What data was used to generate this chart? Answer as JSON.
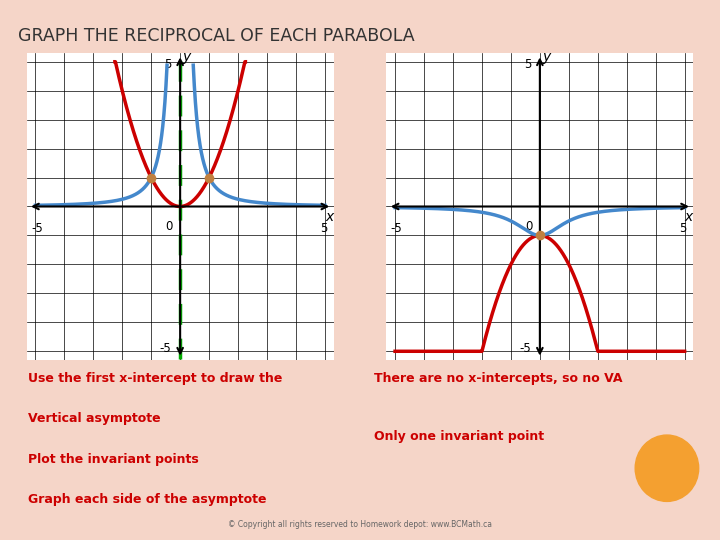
{
  "title": "Graph the Reciprocal of Each Parabola",
  "bg_color": "#f5d5c8",
  "graph_bg": "#ffffff",
  "grid_color": "#000000",
  "left_parabola_color": "#cc0000",
  "left_reciprocal_color": "#4488cc",
  "left_asymptote_color": "#00aa00",
  "right_parabola_color": "#cc0000",
  "right_reciprocal_color": "#4488cc",
  "text_color_red": "#cc0000",
  "left_text": [
    "Use the first x-intercept to draw the",
    "Vertical asymptote",
    "Plot the invariant points",
    "Graph each side of the asymptote"
  ],
  "right_text_1": "There are no x-intercepts, so no VA",
  "right_text_2": "Only one invariant point",
  "copyright": "© Copyright all rights reserved to Homework depot: www.BCMath.ca",
  "orange_dot_color": "#f4a030",
  "xmin": -5,
  "xmax": 5,
  "ymin": -5,
  "ymax": 5
}
